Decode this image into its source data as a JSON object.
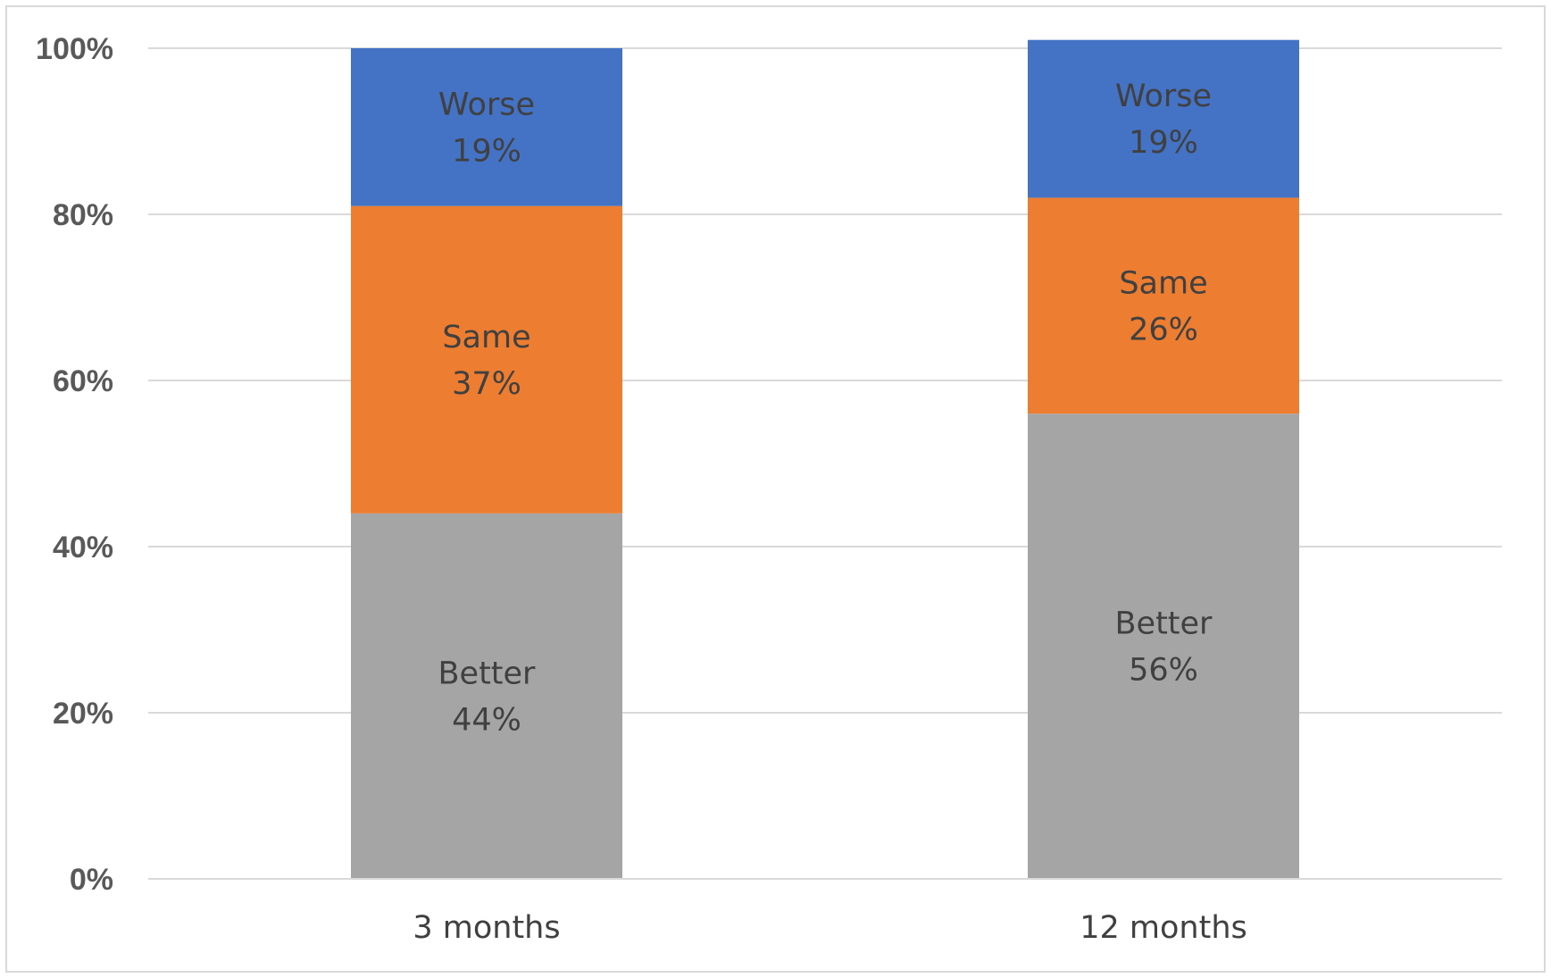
{
  "chart_data": {
    "type": "bar",
    "stacked": true,
    "percent_stacked": true,
    "categories": [
      "3 months",
      "12 months"
    ],
    "series": [
      {
        "name": "Better",
        "values": [
          44,
          56
        ],
        "color": "#a5a5a5",
        "labels": [
          "44%",
          "56%"
        ]
      },
      {
        "name": "Same",
        "values": [
          37,
          26
        ],
        "color": "#ed7d31",
        "labels": [
          "37%",
          "26%"
        ]
      },
      {
        "name": "Worse",
        "values": [
          19,
          19
        ],
        "color": "#4472c4",
        "labels": [
          "19%",
          "19%"
        ]
      }
    ],
    "ylim": [
      0,
      100
    ],
    "yticks": [
      "0%",
      "20%",
      "40%",
      "60%",
      "80%",
      "100%"
    ],
    "title": "",
    "xlabel": "",
    "ylabel": "",
    "grid": true,
    "legend": "none"
  }
}
